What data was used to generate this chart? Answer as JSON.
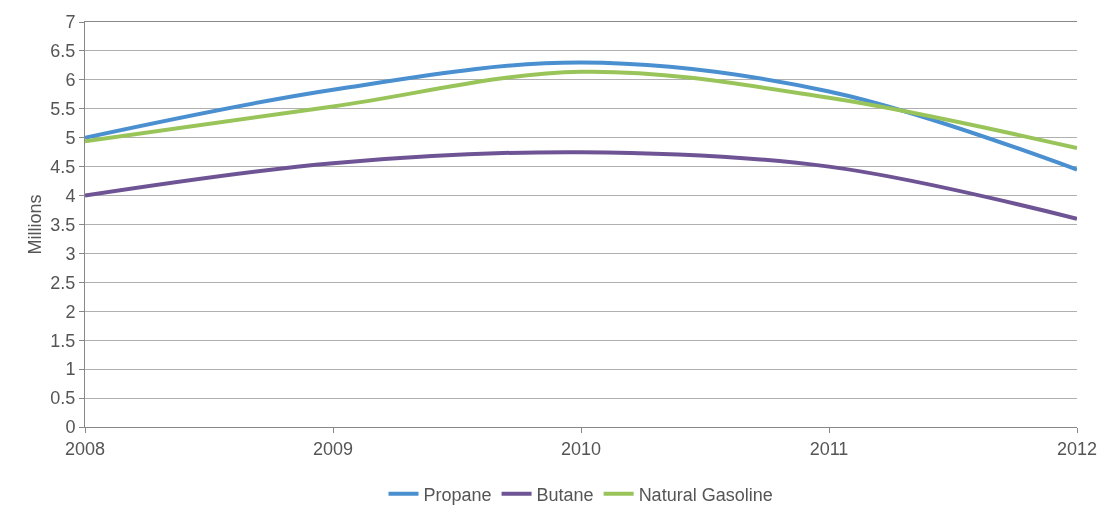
{
  "chart_data": {
    "type": "line",
    "ylabel": "Millions",
    "x": [
      2008,
      2009,
      2010,
      2011,
      2012
    ],
    "series": [
      {
        "name": "Propane",
        "color": "#4a8fd0",
        "values": [
          5.0,
          5.83,
          6.3,
          5.8,
          4.45
        ]
      },
      {
        "name": "Butane",
        "color": "#6e5494",
        "values": [
          4.0,
          4.56,
          4.75,
          4.5,
          3.6
        ]
      },
      {
        "name": "Natural Gasoline",
        "color": "#99c45a",
        "values": [
          4.94,
          5.54,
          6.14,
          5.69,
          4.82
        ]
      }
    ],
    "xlim": [
      2008,
      2012
    ],
    "xticks": [
      2008,
      2009,
      2010,
      2011,
      2012
    ],
    "ylim": [
      0,
      7
    ],
    "yticks": [
      0,
      0.5,
      1,
      1.5,
      2,
      2.5,
      3,
      3.5,
      4,
      4.5,
      5,
      5.5,
      6,
      6.5,
      7
    ],
    "grid": "y",
    "legend": "bottom",
    "marker": "none",
    "line_style": "solid"
  }
}
